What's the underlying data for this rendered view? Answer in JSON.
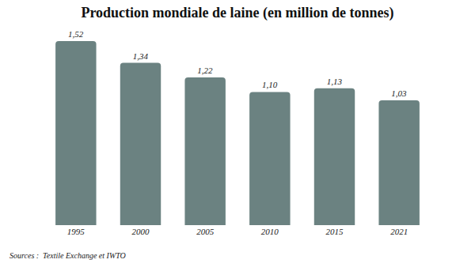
{
  "chart_data": {
    "type": "bar",
    "title": "Production mondiale de laine (en million de tonnes)",
    "categories": [
      "1995",
      "2000",
      "2005",
      "2010",
      "2015",
      "2021"
    ],
    "values": [
      1.52,
      1.34,
      1.22,
      1.1,
      1.13,
      1.03
    ],
    "value_labels": [
      "1,52",
      "1,34",
      "1,22",
      "1,10",
      "1,13",
      "1,03"
    ],
    "color": "#6b8281",
    "ylim": [
      0,
      1.52
    ],
    "grid": false,
    "data_labels": true,
    "tick_labels": "x",
    "annotations": [
      "Sources :  Textile Exchange et IWTO"
    ]
  }
}
